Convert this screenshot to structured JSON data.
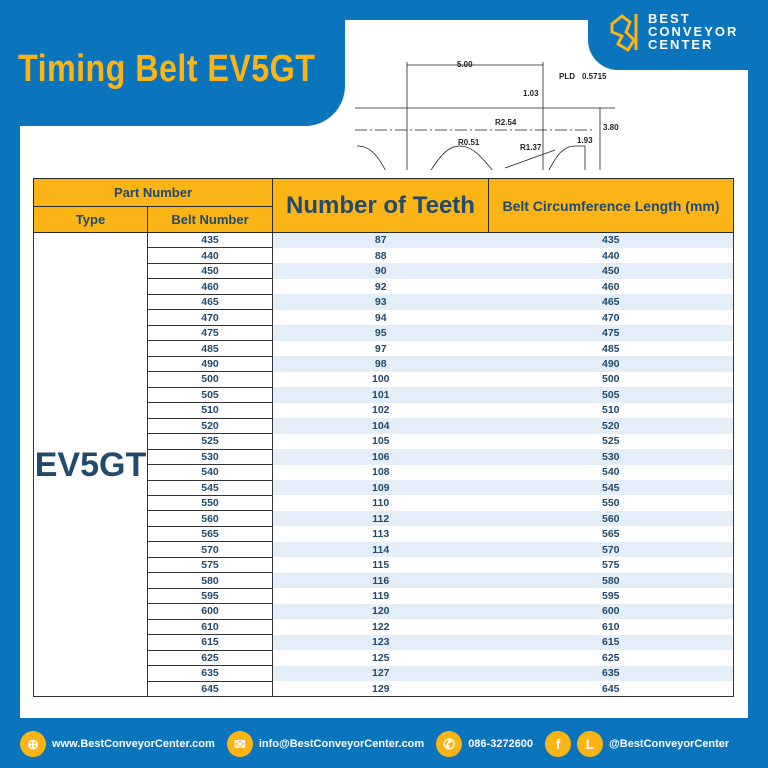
{
  "title": "Timing Belt EV5GT",
  "logo": {
    "line1": "BEST",
    "line2": "CONVEYOR",
    "line3": "CENTER"
  },
  "diagram": {
    "pitch": "5.00",
    "pld_label": "PLD",
    "pld": "0.5715",
    "d1": "1.03",
    "r1": "R2.54",
    "r2": "R0.51",
    "r3": "R1.37",
    "h_total": "3.80",
    "h_tooth": "1.93"
  },
  "table": {
    "header": {
      "part_number": "Part Number",
      "type": "Type",
      "belt_number": "Belt Number",
      "teeth": "Number of Teeth",
      "length": "Belt Circumference Length (mm)"
    },
    "type_value": "EV5GT",
    "rows": [
      [
        "435",
        "87",
        "435"
      ],
      [
        "440",
        "88",
        "440"
      ],
      [
        "450",
        "90",
        "450"
      ],
      [
        "460",
        "92",
        "460"
      ],
      [
        "465",
        "93",
        "465"
      ],
      [
        "470",
        "94",
        "470"
      ],
      [
        "475",
        "95",
        "475"
      ],
      [
        "485",
        "97",
        "485"
      ],
      [
        "490",
        "98",
        "490"
      ],
      [
        "500",
        "100",
        "500"
      ],
      [
        "505",
        "101",
        "505"
      ],
      [
        "510",
        "102",
        "510"
      ],
      [
        "520",
        "104",
        "520"
      ],
      [
        "525",
        "105",
        "525"
      ],
      [
        "530",
        "106",
        "530"
      ],
      [
        "540",
        "108",
        "540"
      ],
      [
        "545",
        "109",
        "545"
      ],
      [
        "550",
        "110",
        "550"
      ],
      [
        "560",
        "112",
        "560"
      ],
      [
        "565",
        "113",
        "565"
      ],
      [
        "570",
        "114",
        "570"
      ],
      [
        "575",
        "115",
        "575"
      ],
      [
        "580",
        "116",
        "580"
      ],
      [
        "595",
        "119",
        "595"
      ],
      [
        "600",
        "120",
        "600"
      ],
      [
        "610",
        "122",
        "610"
      ],
      [
        "615",
        "123",
        "615"
      ],
      [
        "625",
        "125",
        "625"
      ],
      [
        "635",
        "127",
        "635"
      ],
      [
        "645",
        "129",
        "645"
      ]
    ]
  },
  "footer": {
    "website": "www.BestConveyorCenter.com",
    "email": "info@BestConveyorCenter.com",
    "phone": "086-3272600",
    "social": "@BestConveyorCenter"
  },
  "colors": {
    "blue": "#0a74bd",
    "yellow": "#fbb416",
    "navy": "#214a6e"
  }
}
